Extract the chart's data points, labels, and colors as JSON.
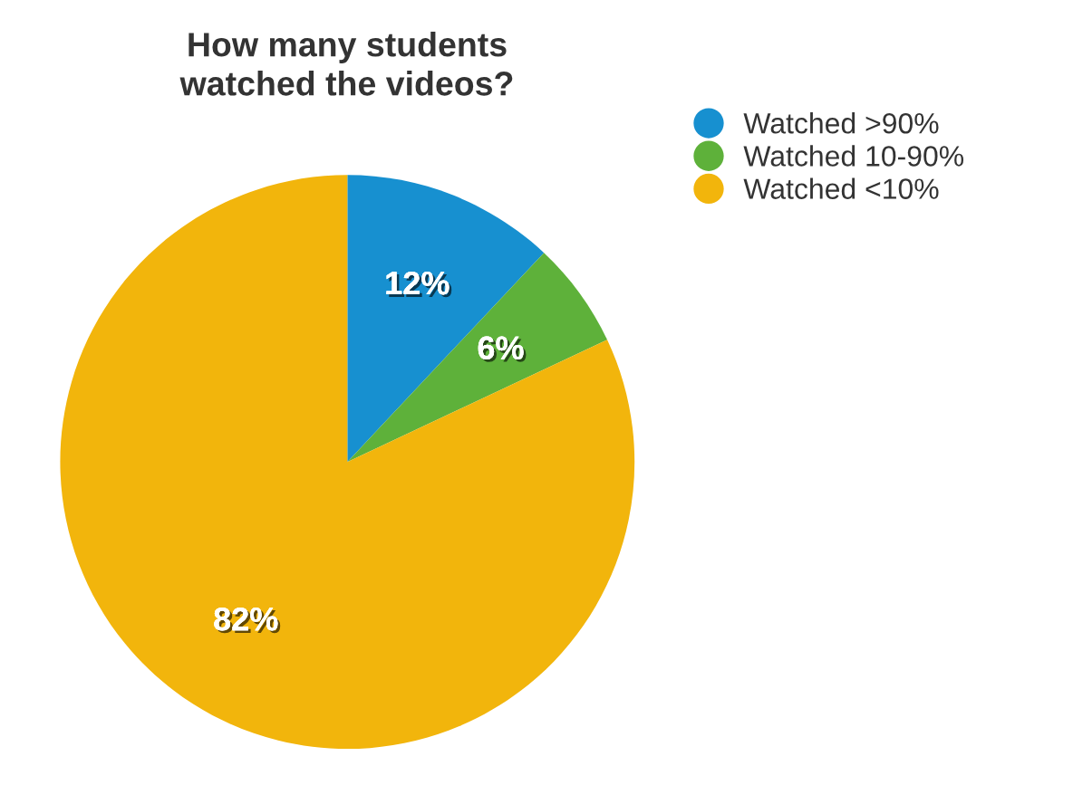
{
  "chart_data": {
    "type": "pie",
    "title": "How many students\nwatched the videos?",
    "categories": [
      "Watched >90%",
      "Watched 10-90%",
      "Watched <10%"
    ],
    "values": [
      12,
      6,
      82
    ],
    "value_labels": [
      "12%",
      "6%",
      "82%"
    ],
    "colors": [
      "#1790d0",
      "#5eb13a",
      "#f2b50c"
    ],
    "legend": "top right"
  }
}
